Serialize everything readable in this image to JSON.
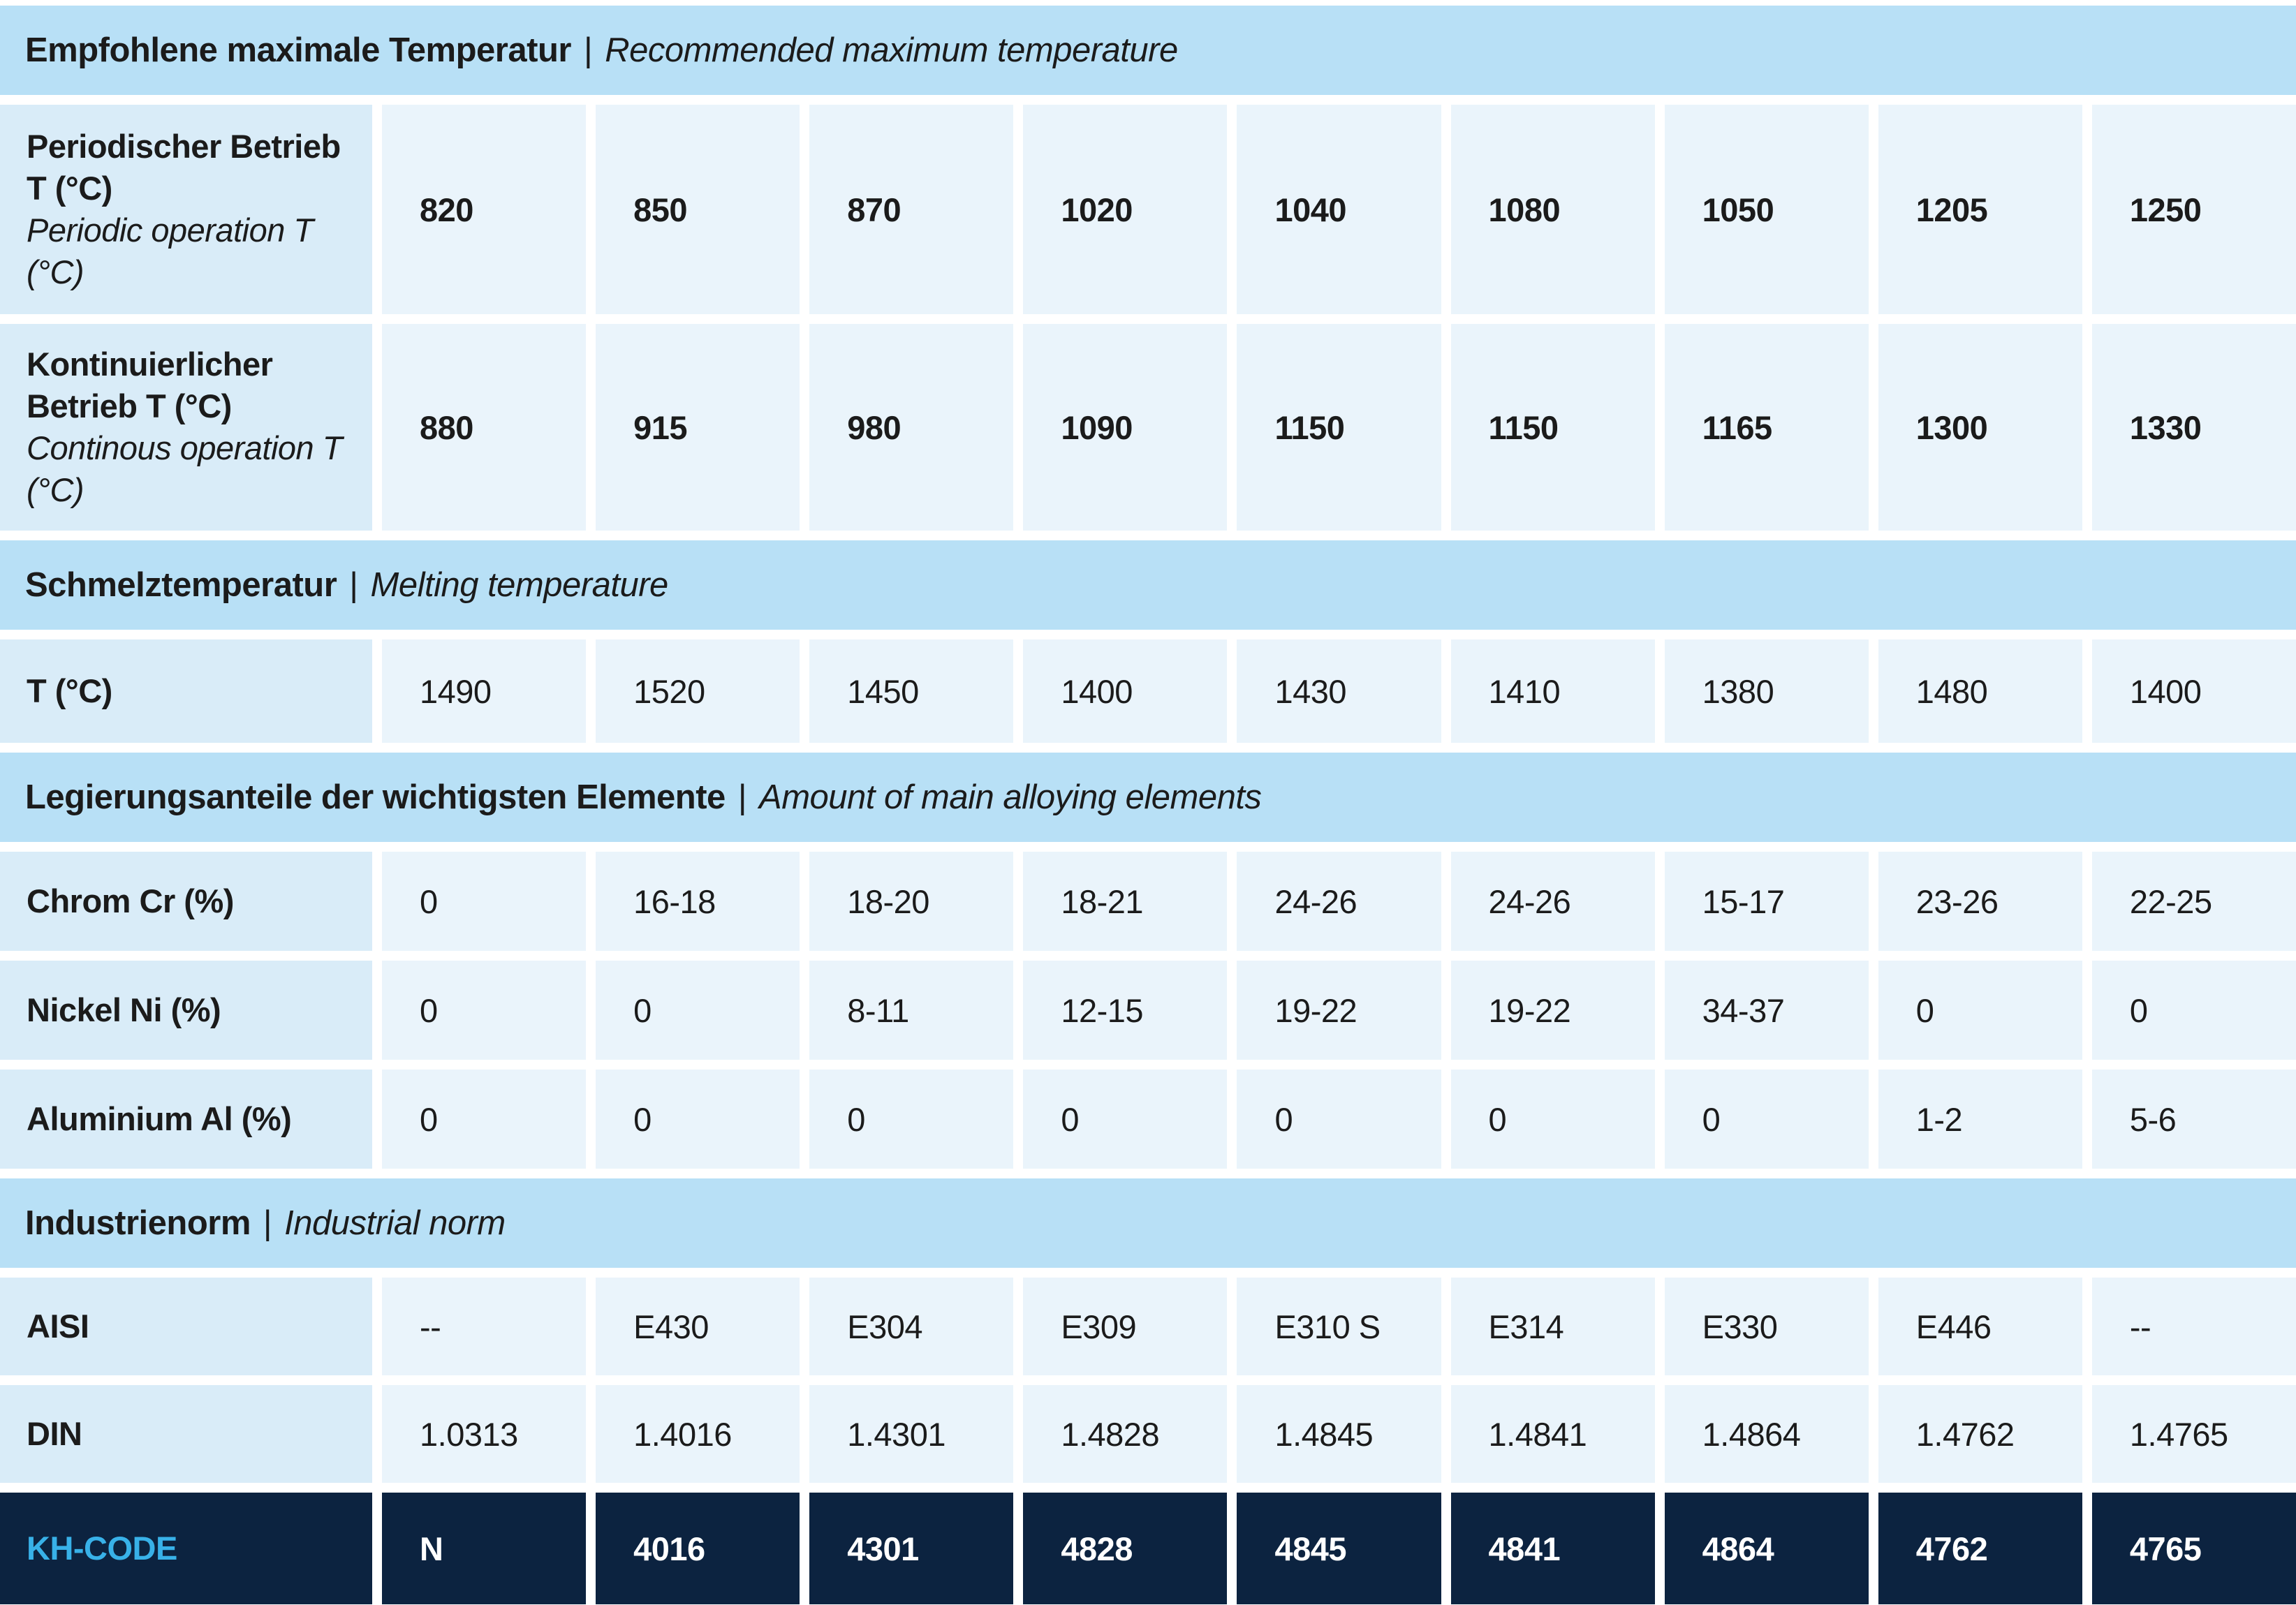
{
  "colors": {
    "band_bg": "#b8e0f6",
    "label_cell_bg": "#d9ecf8",
    "value_cell_bg": "#eaf4fb",
    "dark_row_bg": "#0c2340",
    "kh_label_color": "#38b1e8",
    "text_color": "#1b1b1b",
    "dark_row_text_color": "#ffffff"
  },
  "separator": "|",
  "sections": [
    {
      "header": {
        "de": "Empfohlene maximale Temperatur",
        "en": "Recommended maximum temperature"
      },
      "rows": [
        {
          "label_de": "Periodischer Betrieb T (°C)",
          "label_en": "Periodic operation T (°C)",
          "values": [
            "820",
            "850",
            "870",
            "1020",
            "1040",
            "1080",
            "1050",
            "1205",
            "1250"
          ]
        },
        {
          "label_de": "Kontinuierlicher Betrieb T (°C)",
          "label_en": "Continous operation T (°C)",
          "values": [
            "880",
            "915",
            "980",
            "1090",
            "1150",
            "1150",
            "1165",
            "1300",
            "1330"
          ]
        }
      ]
    },
    {
      "header": {
        "de": "Schmelztemperatur",
        "en": "Melting temperature"
      },
      "rows": [
        {
          "label_de": "T (°C)",
          "label_en": "",
          "values": [
            "1490",
            "1520",
            "1450",
            "1400",
            "1430",
            "1410",
            "1380",
            "1480",
            "1400"
          ]
        }
      ]
    },
    {
      "header": {
        "de": "Legierungsanteile der wichtigsten Elemente",
        "en": "Amount of main alloying elements"
      },
      "rows": [
        {
          "label_de": "Chrom Cr (%)",
          "label_en": "",
          "values": [
            "0",
            "16-18",
            "18-20",
            "18-21",
            "24-26",
            "24-26",
            "15-17",
            "23-26",
            "22-25"
          ]
        },
        {
          "label_de": "Nickel Ni (%)",
          "label_en": "",
          "values": [
            "0",
            "0",
            "8-11",
            "12-15",
            "19-22",
            "19-22",
            "34-37",
            "0",
            "0"
          ]
        },
        {
          "label_de": "Aluminium Al (%)",
          "label_en": "",
          "values": [
            "0",
            "0",
            "0",
            "0",
            "0",
            "0",
            "0",
            "1-2",
            "5-6"
          ]
        }
      ]
    },
    {
      "header": {
        "de": "Industrienorm",
        "en": "Industrial norm"
      },
      "rows": [
        {
          "label_de": "AISI",
          "label_en": "",
          "values": [
            "--",
            "E430",
            "E304",
            "E309",
            "E310 S",
            "E314",
            "E330",
            "E446",
            "--"
          ]
        },
        {
          "label_de": "DIN",
          "label_en": "",
          "values": [
            "1.0313",
            "1.4016",
            "1.4301",
            "1.4828",
            "1.4845",
            "1.4841",
            "1.4864",
            "1.4762",
            "1.4765"
          ]
        }
      ]
    }
  ],
  "kh_row": {
    "label": "KH-CODE",
    "values": [
      "N",
      "4016",
      "4301",
      "4828",
      "4845",
      "4841",
      "4864",
      "4762",
      "4765"
    ]
  }
}
